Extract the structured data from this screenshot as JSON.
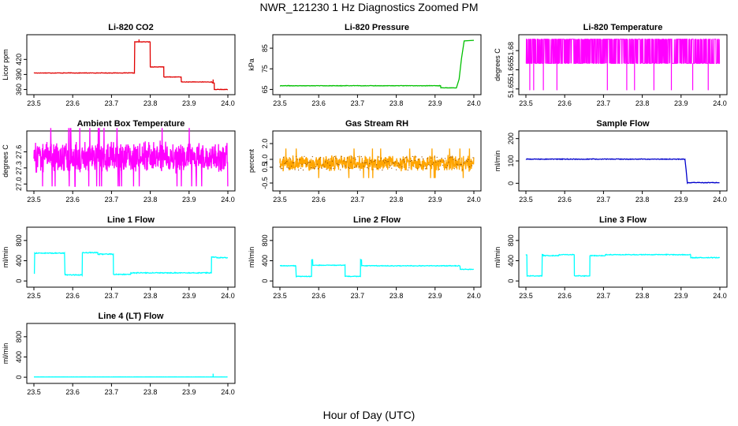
{
  "page": {
    "title": "NWR_121230  1 Hz Diagnostics Zoomed PM",
    "x_axis_label": "Hour of Day (UTC)"
  },
  "colors": {
    "co2": "#e00000",
    "pressure": "#00c000",
    "licor_temp": "#ff00ff",
    "box_temp": "#ff00ff",
    "rh": "#ffa500",
    "rh_dots": "#8b4500",
    "sample_flow": "#0000cc",
    "line_flows": "#00ffff"
  },
  "chart_data": [
    {
      "type": "line",
      "title": "Li-820 CO2",
      "ylabel": "Licor ppm",
      "xlim": [
        23.5,
        24.0
      ],
      "ylim": [
        356,
        463
      ],
      "yticks": [
        360,
        390,
        420
      ],
      "xticks": [
        23.5,
        23.6,
        23.7,
        23.8,
        23.9,
        24.0
      ],
      "color_key": "co2",
      "noise": 0.4,
      "segments": [
        [
          23.5,
          23.76,
          393
        ],
        [
          23.76,
          23.8,
          455
        ],
        [
          23.8,
          23.835,
          405
        ],
        [
          23.835,
          23.88,
          385
        ],
        [
          23.88,
          23.96,
          375
        ],
        [
          23.96,
          23.965,
          373
        ],
        [
          23.965,
          24.0,
          360
        ]
      ],
      "spikes": [
        [
          23.771,
          460
        ],
        [
          23.962,
          380
        ]
      ]
    },
    {
      "type": "line",
      "title": "Li-820 Pressure",
      "ylabel": "kPa",
      "xlim": [
        23.5,
        24.0
      ],
      "ylim": [
        64,
        90
      ],
      "yticks": [
        65,
        75,
        85
      ],
      "xticks": [
        23.5,
        23.6,
        23.7,
        23.8,
        23.9,
        24.0
      ],
      "color_key": "pressure",
      "noise": 0.1,
      "segments": [
        [
          23.5,
          23.915,
          66.8
        ],
        [
          23.915,
          23.955,
          65.8
        ]
      ],
      "ramp": [
        [
          23.955,
          65.8
        ],
        [
          23.962,
          70
        ],
        [
          23.968,
          80
        ],
        [
          23.975,
          88.5
        ],
        [
          24.0,
          88.8
        ]
      ]
    },
    {
      "type": "line",
      "title": "Li-820 Temperature",
      "ylabel": "degrees C",
      "xlim": [
        23.5,
        24.0
      ],
      "ylim": [
        51.648,
        51.69
      ],
      "yticks": [
        51.65,
        51.665,
        51.68
      ],
      "ytick_labels": [
        "51.65",
        "51.665",
        "51.68"
      ],
      "xticks": [
        23.5,
        23.6,
        23.7,
        23.8,
        23.9,
        24.0
      ],
      "color_key": "licor_temp",
      "band": [
        51.67,
        51.689
      ],
      "drops": [
        23.51,
        23.52,
        23.545,
        23.58,
        23.71,
        23.76,
        23.78,
        23.83,
        23.875,
        23.93,
        23.97
      ],
      "drop_level": 51.649
    },
    {
      "type": "line",
      "title": "Ambient Box Temperature",
      "ylabel": "degrees C",
      "xlim": [
        23.5,
        24.0
      ],
      "ylim": [
        26.93,
        27.93
      ],
      "yticks": [
        27.0,
        27.3,
        27.6
      ],
      "ytick_labels": [
        "27.0",
        "27.3",
        "27.6"
      ],
      "xticks": [
        23.5,
        23.6,
        23.7,
        23.8,
        23.9,
        24.0
      ],
      "color_key": "box_temp",
      "noisy_center": 27.5,
      "noisy_amp": 0.32
    },
    {
      "type": "line",
      "title": "Gas Stream RH",
      "ylabel": "percent",
      "xlim": [
        23.5,
        24.0
      ],
      "ylim": [
        -0.8,
        2.6
      ],
      "yticks": [
        -0.5,
        0.5,
        1.0,
        2.0
      ],
      "ytick_labels": [
        "-0.5",
        "0.5",
        "1.0",
        "2.0"
      ],
      "xticks": [
        23.5,
        23.6,
        23.7,
        23.8,
        23.9,
        24.0
      ],
      "color_key": "rh",
      "noisy_center": 0.75,
      "noisy_amp": 0.55
    },
    {
      "type": "line",
      "title": "Sample Flow",
      "ylabel": "ml/min",
      "xlim": [
        23.5,
        24.0
      ],
      "ylim": [
        -20,
        220
      ],
      "yticks": [
        0,
        100,
        200
      ],
      "xticks": [
        23.5,
        23.6,
        23.7,
        23.8,
        23.9,
        24.0
      ],
      "color_key": "sample_flow",
      "noise": 1.5,
      "segments": [
        [
          23.5,
          23.91,
          108
        ],
        [
          23.915,
          24.0,
          3
        ]
      ],
      "ramp": [
        [
          23.91,
          108
        ],
        [
          23.913,
          60
        ],
        [
          23.916,
          3
        ]
      ]
    },
    {
      "type": "line",
      "title": "Line 1 Flow",
      "ylabel": "ml/min",
      "xlim": [
        23.5,
        24.0
      ],
      "ylim": [
        -60,
        1000
      ],
      "yticks": [
        0,
        400,
        800
      ],
      "xticks": [
        23.5,
        23.6,
        23.7,
        23.8,
        23.9,
        24.0
      ],
      "color_key": "line_flows",
      "noise": 8,
      "segments": [
        [
          23.5,
          23.502,
          150
        ],
        [
          23.502,
          23.58,
          550
        ],
        [
          23.58,
          23.625,
          120
        ],
        [
          23.625,
          23.665,
          560
        ],
        [
          23.665,
          23.705,
          530
        ],
        [
          23.705,
          23.75,
          130
        ],
        [
          23.75,
          23.958,
          160
        ],
        [
          23.958,
          23.972,
          470
        ],
        [
          23.972,
          24.0,
          460
        ]
      ]
    },
    {
      "type": "line",
      "title": "Line 2 Flow",
      "ylabel": "ml/min",
      "xlim": [
        23.5,
        24.0
      ],
      "ylim": [
        -60,
        1000
      ],
      "yticks": [
        0,
        400,
        800
      ],
      "xticks": [
        23.5,
        23.6,
        23.7,
        23.8,
        23.9,
        24.0
      ],
      "color_key": "line_flows",
      "noise": 6,
      "segments": [
        [
          23.5,
          23.542,
          300
        ],
        [
          23.542,
          23.582,
          90
        ],
        [
          23.582,
          23.585,
          420
        ],
        [
          23.585,
          23.668,
          310
        ],
        [
          23.668,
          23.708,
          90
        ],
        [
          23.708,
          23.711,
          420
        ],
        [
          23.711,
          23.965,
          300
        ],
        [
          23.965,
          24.0,
          230
        ]
      ]
    },
    {
      "type": "line",
      "title": "Line 3 Flow",
      "ylabel": "ml/min",
      "xlim": [
        23.5,
        24.0
      ],
      "ylim": [
        -60,
        1000
      ],
      "yticks": [
        0,
        400,
        800
      ],
      "xticks": [
        23.5,
        23.6,
        23.7,
        23.8,
        23.9,
        24.0
      ],
      "color_key": "line_flows",
      "noise": 7,
      "segments": [
        [
          23.5,
          23.503,
          520
        ],
        [
          23.503,
          23.542,
          100
        ],
        [
          23.542,
          23.545,
          520
        ],
        [
          23.545,
          23.585,
          500
        ],
        [
          23.585,
          23.625,
          520
        ],
        [
          23.625,
          23.665,
          100
        ],
        [
          23.665,
          23.705,
          500
        ],
        [
          23.705,
          23.925,
          520
        ],
        [
          23.925,
          24.0,
          460
        ]
      ]
    },
    {
      "type": "line",
      "title": "Line 4 (LT) Flow",
      "ylabel": "ml/min",
      "xlim": [
        23.5,
        24.0
      ],
      "ylim": [
        -60,
        1000
      ],
      "yticks": [
        0,
        400,
        800
      ],
      "xticks": [
        23.5,
        23.6,
        23.7,
        23.8,
        23.9,
        24.0
      ],
      "color_key": "line_flows",
      "noise": 1,
      "segments": [
        [
          23.5,
          24.0,
          5
        ]
      ],
      "spikes": [
        [
          23.962,
          70
        ]
      ]
    }
  ]
}
